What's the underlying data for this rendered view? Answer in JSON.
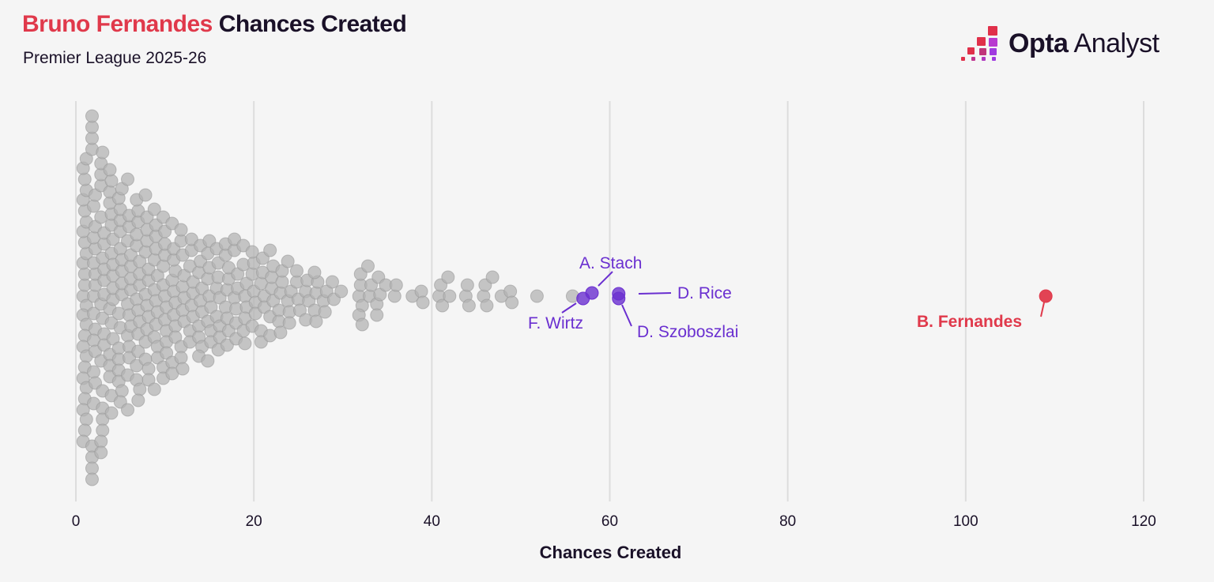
{
  "header": {
    "title_highlight": "Bruno Fernandes",
    "title_rest": " Chances Created",
    "subtitle": "Premier League 2025-26"
  },
  "logo": {
    "bold": "Opta",
    "regular": " Analyst"
  },
  "colors": {
    "background": "#f5f5f5",
    "dot_default": "#b3b3b3",
    "dot_stroke": "#9a9a9a",
    "highlight_purple": "#6a2fd0",
    "highlight_red": "#e0394b",
    "gridline": "#dddddd",
    "text": "#1a1128"
  },
  "chart_data": {
    "type": "scatter",
    "subtype": "beeswarm",
    "title": "Bruno Fernandes Chances Created",
    "subtitle": "Premier League 2025-26",
    "xlabel": "Chances Created",
    "ylabel": "",
    "xlim": [
      0,
      120
    ],
    "xticks": [
      0,
      20,
      40,
      60,
      80,
      100,
      120
    ],
    "grid": "vertical",
    "legend": "none",
    "distribution": [
      [
        1,
        28
      ],
      [
        2,
        24
      ],
      [
        3,
        22
      ],
      [
        4,
        20
      ],
      [
        5,
        18
      ],
      [
        6,
        16
      ],
      [
        7,
        17
      ],
      [
        8,
        15
      ],
      [
        9,
        14
      ],
      [
        10,
        14
      ],
      [
        11,
        12
      ],
      [
        12,
        11
      ],
      [
        13,
        9
      ],
      [
        14,
        10
      ],
      [
        15,
        10
      ],
      [
        16,
        9
      ],
      [
        17,
        9
      ],
      [
        18,
        8
      ],
      [
        19,
        8
      ],
      [
        20,
        7
      ],
      [
        21,
        7
      ],
      [
        22,
        7
      ],
      [
        23,
        6
      ],
      [
        24,
        5
      ],
      [
        25,
        4
      ],
      [
        26,
        4
      ],
      [
        27,
        5
      ],
      [
        28,
        3
      ],
      [
        29,
        2
      ],
      [
        30,
        1
      ],
      [
        32,
        6
      ],
      [
        33,
        3
      ],
      [
        34,
        4
      ],
      [
        35,
        1
      ],
      [
        36,
        2
      ],
      [
        38,
        1
      ],
      [
        39,
        2
      ],
      [
        41,
        3
      ],
      [
        42,
        2
      ],
      [
        44,
        3
      ],
      [
        46,
        3
      ],
      [
        47,
        1
      ],
      [
        48,
        1
      ],
      [
        49,
        2
      ],
      [
        52,
        1
      ],
      [
        56,
        1
      ]
    ],
    "highlighted": [
      {
        "name": "A. Stach",
        "value": 58,
        "color": "#6a2fd0"
      },
      {
        "name": "F. Wirtz",
        "value": 57,
        "color": "#6a2fd0"
      },
      {
        "name": "D. Rice",
        "value": 61,
        "color": "#6a2fd0"
      },
      {
        "name": "D. Szoboszlai",
        "value": 61,
        "color": "#6a2fd0"
      },
      {
        "name": "B. Fernandes",
        "value": 109,
        "color": "#e0394b"
      }
    ]
  },
  "annotations": {
    "stach": "A. Stach",
    "wirtz": "F. Wirtz",
    "rice": "D. Rice",
    "szoboszlai": "D. Szoboszlai",
    "fernandes": "B. Fernandes"
  },
  "axis": {
    "title": "Chances Created"
  }
}
